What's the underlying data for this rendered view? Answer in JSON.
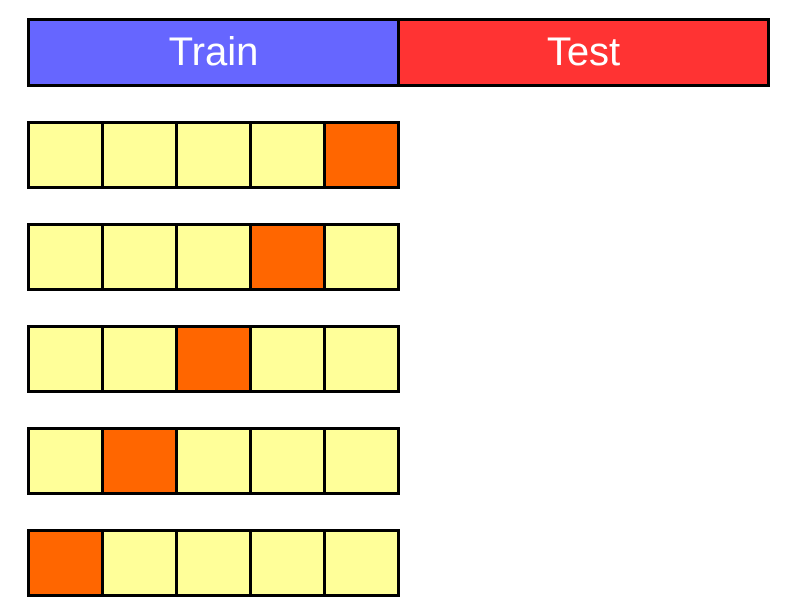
{
  "header": {
    "train_label": "Train",
    "test_label": "Test"
  },
  "colors": {
    "train": "#6666ff",
    "test": "#ff3333",
    "fold_train": "#ffff99",
    "fold_validation": "#ff6600",
    "border": "#000000"
  },
  "folds": [
    {
      "validation_index": 4
    },
    {
      "validation_index": 3
    },
    {
      "validation_index": 2
    },
    {
      "validation_index": 1
    },
    {
      "validation_index": 0
    }
  ],
  "cells_per_fold": 5
}
